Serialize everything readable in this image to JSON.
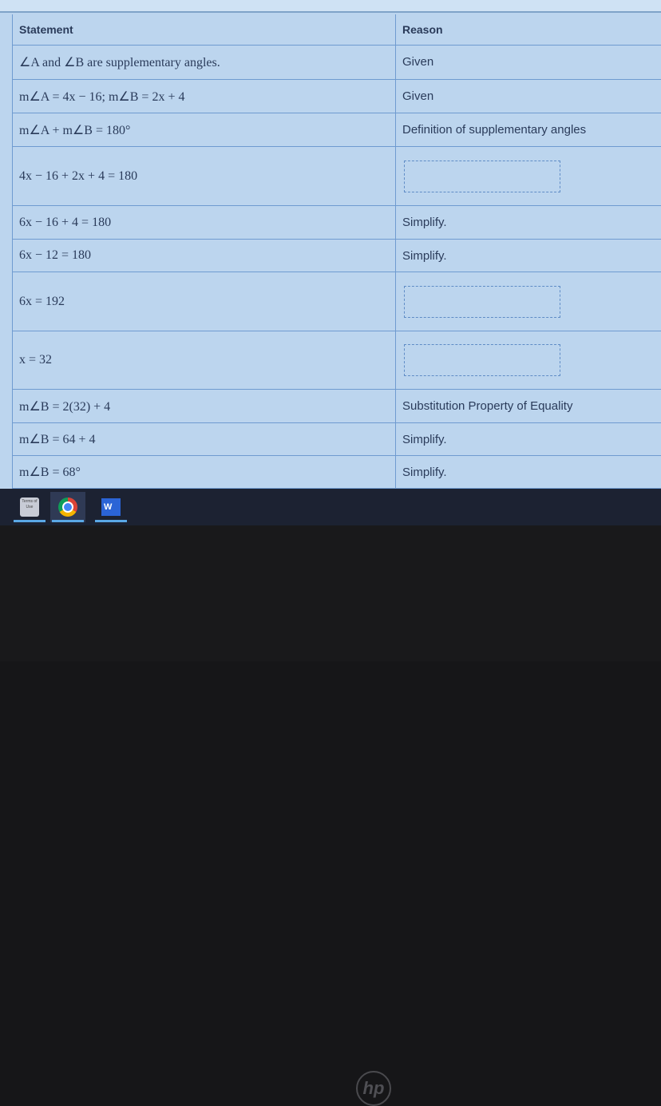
{
  "table": {
    "headers": {
      "statement": "Statement",
      "reason": "Reason"
    },
    "rows": [
      {
        "statement": "∠A and ∠B are supplementary angles.",
        "reason": "Given"
      },
      {
        "statement": "m∠A = 4x − 16; m∠B = 2x + 4",
        "reason": "Given"
      },
      {
        "statement": "m∠A + m∠B = 180°",
        "reason": "Definition of supplementary angles"
      },
      {
        "statement": "4x − 16 + 2x + 4 = 180",
        "reason": ""
      },
      {
        "statement": "6x − 16 + 4 = 180",
        "reason": "Simplify."
      },
      {
        "statement": "6x − 12 = 180",
        "reason": "Simplify."
      },
      {
        "statement": "6x = 192",
        "reason": ""
      },
      {
        "statement": "x = 32",
        "reason": ""
      },
      {
        "statement": "m∠B = 2(32) + 4",
        "reason": "Substitution Property of Equality"
      },
      {
        "statement": "m∠B = 64 + 4",
        "reason": "Simplify."
      },
      {
        "statement": "m∠B = 68°",
        "reason": "Simplify."
      }
    ]
  },
  "taskbar": {
    "apps": [
      {
        "name": "Terms of Use",
        "icon": "terms-of-use-icon"
      },
      {
        "name": "Chrome",
        "icon": "chrome-icon"
      },
      {
        "name": "Word",
        "icon": "word-icon",
        "letter": "W"
      }
    ]
  },
  "bezel": {
    "logo": "hp"
  }
}
